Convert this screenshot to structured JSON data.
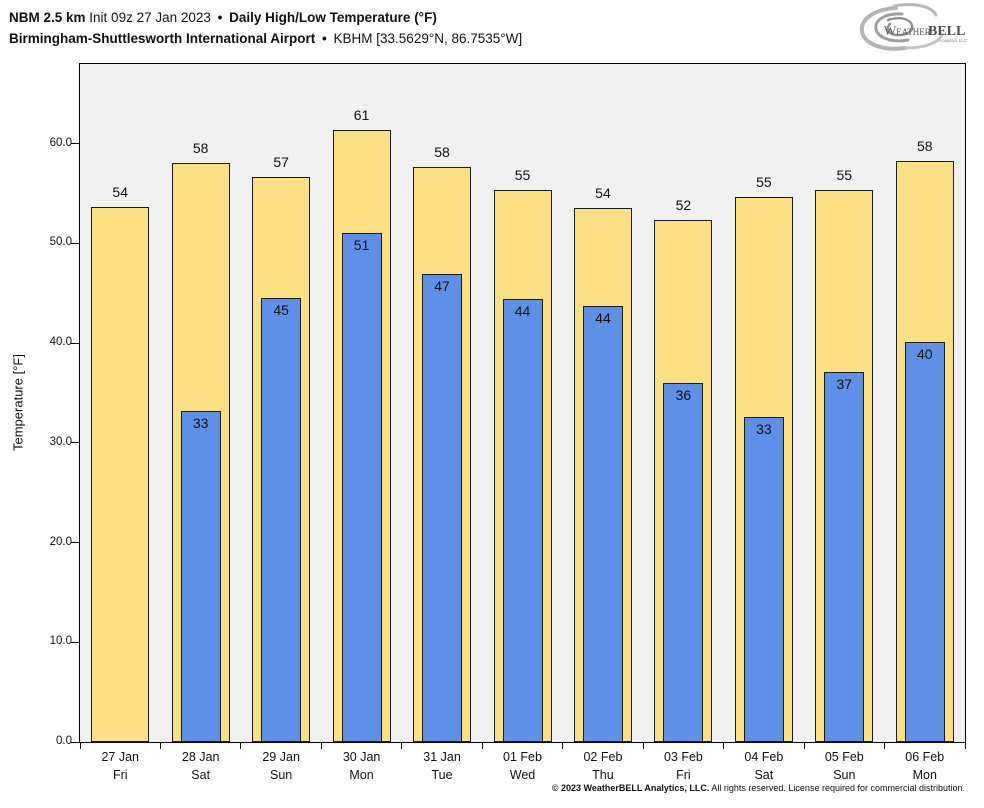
{
  "header": {
    "line1": {
      "model": "NBM 2.5 km",
      "init": "Init 09z 27 Jan 2023",
      "sep": "•",
      "title": "Daily High/Low Temperature (°F)"
    },
    "line2": {
      "station": "Birmingham-Shuttlesworth International Airport",
      "sep": "•",
      "id": "KBHM [33.5629°N, 86.7535°W]"
    }
  },
  "logo": {
    "name_left": "Weather",
    "name_right": "BELL",
    "sub": "Analytics LLC"
  },
  "footer": {
    "bold": "© 2023 WeatherBELL Analytics, LLC.",
    "regular": " All rights reserved. License required for commercial distribution."
  },
  "chart_data": {
    "type": "bar",
    "title": "Daily High/Low Temperature (°F)",
    "ylabel": "Temperature [°F]",
    "xlabel": "",
    "ylim": [
      0,
      68
    ],
    "yticks": [
      0,
      10,
      20,
      30,
      40,
      50,
      60
    ],
    "ytick_labels": [
      "0.0",
      "10.0",
      "20.0",
      "30.0",
      "40.0",
      "50.0",
      "60.0"
    ],
    "grid": false,
    "legend": "none",
    "plot_bg": "#f1f1f1",
    "categories": [
      "27 Jan",
      "28 Jan",
      "29 Jan",
      "30 Jan",
      "31 Jan",
      "01 Feb",
      "02 Feb",
      "03 Feb",
      "04 Feb",
      "05 Feb",
      "06 Feb"
    ],
    "weekdays": [
      "Fri",
      "Sat",
      "Sun",
      "Mon",
      "Tue",
      "Wed",
      "Thu",
      "Fri",
      "Sat",
      "Sun",
      "Mon"
    ],
    "series": [
      {
        "name": "High",
        "color": "#fbe084",
        "values": [
          53.7,
          58.1,
          56.7,
          61.4,
          57.7,
          55.4,
          53.6,
          52.4,
          54.7,
          55.4,
          58.3
        ],
        "labels": [
          "54",
          "58",
          "57",
          "61",
          "58",
          "55",
          "54",
          "52",
          "55",
          "55",
          "58"
        ]
      },
      {
        "name": "Low",
        "color": "#5f90e8",
        "values": [
          null,
          33.2,
          44.5,
          51.1,
          46.9,
          44.4,
          43.7,
          36.0,
          32.6,
          37.1,
          40.1
        ],
        "labels": [
          null,
          "33",
          "45",
          "51",
          "47",
          "44",
          "44",
          "36",
          "33",
          "37",
          "40"
        ]
      }
    ]
  }
}
